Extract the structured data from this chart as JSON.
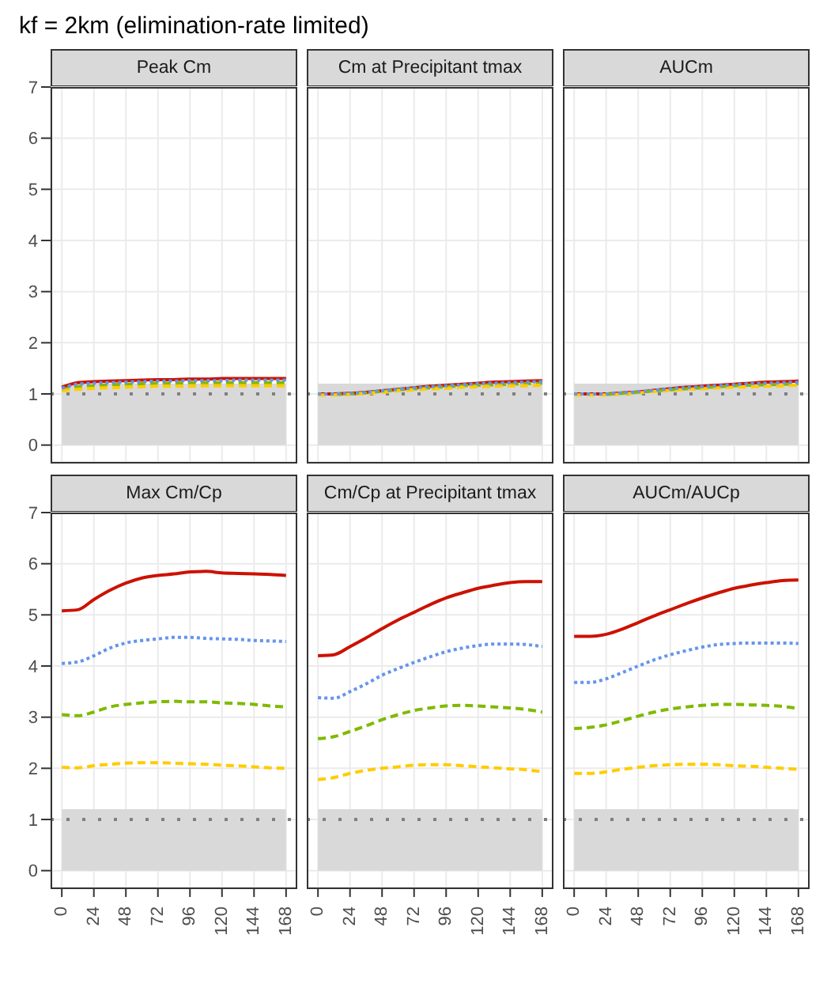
{
  "chart_data": [
    {
      "type": "line",
      "title": "Peak Cm",
      "annotations": [
        "kf = 2km (elimination-rate limited)"
      ],
      "x": [
        0,
        12,
        24,
        36,
        48,
        60,
        72,
        84,
        96,
        108,
        120,
        132,
        144,
        156,
        168
      ],
      "xlim": [
        -8.4,
        176.4
      ],
      "xticks": [
        0,
        24,
        48,
        72,
        96,
        120,
        144,
        168
      ],
      "ylim": [
        -0.33,
        7
      ],
      "yticks": [
        0,
        1,
        2,
        3,
        4,
        5,
        6,
        7
      ],
      "grid": true,
      "tick_labels": "y",
      "bands": [
        {
          "axis": "y",
          "from": 0,
          "to": 1.2,
          "color": "#d9d9d9"
        }
      ],
      "ref_lines": [
        {
          "axis": "y",
          "value": 1,
          "color": "#7f7f7f",
          "line_style": "dotted"
        }
      ],
      "series": [
        {
          "color": "#cc1100",
          "line_style": "solid",
          "values": [
            1.13,
            1.22,
            1.24,
            1.25,
            1.26,
            1.27,
            1.28,
            1.28,
            1.29,
            1.29,
            1.3,
            1.3,
            1.3,
            1.3,
            1.3
          ]
        },
        {
          "color": "#6495ed",
          "line_style": "dotted",
          "values": [
            1.11,
            1.19,
            1.21,
            1.22,
            1.23,
            1.24,
            1.25,
            1.25,
            1.26,
            1.26,
            1.26,
            1.27,
            1.27,
            1.27,
            1.27
          ]
        },
        {
          "color": "#7fba00",
          "line_style": "dashed",
          "values": [
            1.09,
            1.14,
            1.16,
            1.18,
            1.19,
            1.2,
            1.21,
            1.21,
            1.22,
            1.22,
            1.22,
            1.22,
            1.22,
            1.22,
            1.22
          ]
        },
        {
          "color": "#ffcc00",
          "line_style": "dashed",
          "values": [
            1.06,
            1.09,
            1.11,
            1.12,
            1.13,
            1.14,
            1.15,
            1.15,
            1.15,
            1.16,
            1.16,
            1.16,
            1.16,
            1.16,
            1.16
          ]
        }
      ]
    },
    {
      "type": "line",
      "title": "Cm at Precipitant tmax",
      "x": [
        0,
        12,
        24,
        36,
        48,
        60,
        72,
        84,
        96,
        108,
        120,
        132,
        144,
        156,
        168
      ],
      "xlim": [
        -8.4,
        176.4
      ],
      "xticks": [
        0,
        24,
        48,
        72,
        96,
        120,
        144,
        168
      ],
      "ylim": [
        -0.33,
        7
      ],
      "yticks": [
        0,
        1,
        2,
        3,
        4,
        5,
        6,
        7
      ],
      "grid": true,
      "tick_labels": false,
      "bands": [
        {
          "axis": "y",
          "from": 0,
          "to": 1.2,
          "color": "#d9d9d9"
        }
      ],
      "ref_lines": [
        {
          "axis": "y",
          "value": 1,
          "color": "#7f7f7f",
          "line_style": "dotted"
        }
      ],
      "series": [
        {
          "color": "#cc1100",
          "line_style": "solid",
          "values": [
            1.0,
            1.0,
            1.01,
            1.03,
            1.06,
            1.09,
            1.12,
            1.15,
            1.17,
            1.19,
            1.21,
            1.23,
            1.24,
            1.25,
            1.26
          ]
        },
        {
          "color": "#6495ed",
          "line_style": "dotted",
          "values": [
            1.0,
            1.0,
            1.01,
            1.03,
            1.06,
            1.09,
            1.12,
            1.14,
            1.16,
            1.18,
            1.2,
            1.21,
            1.22,
            1.23,
            1.24
          ]
        },
        {
          "color": "#7fba00",
          "line_style": "dashed",
          "values": [
            null,
            0.99,
            1.0,
            1.02,
            1.05,
            1.08,
            1.1,
            1.12,
            1.14,
            1.16,
            1.17,
            1.18,
            1.19,
            1.2,
            1.21
          ]
        },
        {
          "color": "#ffcc00",
          "line_style": "dashed",
          "values": [
            0.98,
            0.98,
            0.99,
            1.01,
            1.03,
            1.06,
            1.08,
            1.1,
            1.11,
            1.13,
            1.14,
            1.15,
            1.16,
            1.16,
            1.17
          ]
        }
      ]
    },
    {
      "type": "line",
      "title": "AUCm",
      "x": [
        0,
        12,
        24,
        36,
        48,
        60,
        72,
        84,
        96,
        108,
        120,
        132,
        144,
        156,
        168
      ],
      "xlim": [
        -8.4,
        176.4
      ],
      "xticks": [
        0,
        24,
        48,
        72,
        96,
        120,
        144,
        168
      ],
      "ylim": [
        -0.33,
        7
      ],
      "yticks": [
        0,
        1,
        2,
        3,
        4,
        5,
        6,
        7
      ],
      "grid": true,
      "tick_labels": false,
      "bands": [
        {
          "axis": "y",
          "from": 0,
          "to": 1.2,
          "color": "#d9d9d9"
        }
      ],
      "ref_lines": [
        {
          "axis": "y",
          "value": 1,
          "color": "#7f7f7f",
          "line_style": "dotted"
        }
      ],
      "series": [
        {
          "color": "#cc1100",
          "line_style": "solid",
          "values": [
            1.0,
            1.0,
            1.0,
            1.02,
            1.04,
            1.07,
            1.1,
            1.13,
            1.15,
            1.17,
            1.19,
            1.21,
            1.23,
            1.24,
            1.25
          ]
        },
        {
          "color": "#6495ed",
          "line_style": "dotted",
          "values": [
            1.0,
            1.0,
            1.0,
            1.02,
            1.04,
            1.07,
            1.1,
            1.12,
            1.14,
            1.16,
            1.18,
            1.2,
            1.21,
            1.22,
            1.23
          ]
        },
        {
          "color": "#7fba00",
          "line_style": "dashed",
          "values": [
            null,
            null,
            0.99,
            1.01,
            1.03,
            1.06,
            1.08,
            1.1,
            1.12,
            1.14,
            1.16,
            1.17,
            1.18,
            1.19,
            1.2
          ]
        },
        {
          "color": "#ffcc00",
          "line_style": "dashed",
          "values": [
            0.98,
            0.98,
            0.98,
            1.0,
            1.02,
            1.05,
            1.07,
            1.09,
            1.1,
            1.12,
            1.13,
            1.14,
            1.15,
            1.16,
            1.17
          ]
        }
      ]
    },
    {
      "type": "line",
      "title": "Max Cm/Cp",
      "x": [
        0,
        12,
        24,
        36,
        48,
        60,
        72,
        84,
        96,
        108,
        120,
        132,
        144,
        156,
        168
      ],
      "xlim": [
        -8.4,
        176.4
      ],
      "xticks": [
        0,
        24,
        48,
        72,
        96,
        120,
        144,
        168
      ],
      "ylim": [
        -0.33,
        7
      ],
      "yticks": [
        0,
        1,
        2,
        3,
        4,
        5,
        6,
        7
      ],
      "grid": true,
      "bands": [
        {
          "axis": "y",
          "from": 0,
          "to": 1.2,
          "color": "#d9d9d9"
        }
      ],
      "ref_lines": [
        {
          "axis": "y",
          "value": 1,
          "color": "#7f7f7f",
          "line_style": "dotted"
        }
      ],
      "series": [
        {
          "color": "#cc1100",
          "line_style": "solid",
          "values": [
            5.08,
            5.1,
            5.3,
            5.48,
            5.62,
            5.72,
            5.77,
            5.8,
            5.84,
            5.85,
            5.82,
            5.81,
            5.8,
            5.79,
            5.77
          ]
        },
        {
          "color": "#6495ed",
          "line_style": "dotted",
          "values": [
            4.05,
            4.08,
            4.2,
            4.35,
            4.45,
            4.5,
            4.53,
            4.56,
            4.56,
            4.54,
            4.53,
            4.52,
            4.5,
            4.49,
            4.48
          ]
        },
        {
          "color": "#7fba00",
          "line_style": "dashed",
          "values": [
            3.05,
            3.03,
            3.1,
            3.2,
            3.25,
            3.28,
            3.3,
            3.31,
            3.3,
            3.3,
            3.28,
            3.27,
            3.25,
            3.22,
            3.2
          ]
        },
        {
          "color": "#ffcc00",
          "line_style": "dashed",
          "values": [
            2.02,
            2.01,
            2.05,
            2.08,
            2.1,
            2.11,
            2.11,
            2.1,
            2.09,
            2.08,
            2.06,
            2.05,
            2.03,
            2.01,
            2.0
          ]
        }
      ]
    },
    {
      "type": "line",
      "title": "Cm/Cp at Precipitant tmax",
      "x": [
        0,
        12,
        24,
        36,
        48,
        60,
        72,
        84,
        96,
        108,
        120,
        132,
        144,
        156,
        168
      ],
      "xlim": [
        -8.4,
        176.4
      ],
      "xticks": [
        0,
        24,
        48,
        72,
        96,
        120,
        144,
        168
      ],
      "ylim": [
        -0.33,
        7
      ],
      "yticks": [
        0,
        1,
        2,
        3,
        4,
        5,
        6,
        7
      ],
      "grid": true,
      "tick_labels": "x",
      "bands": [
        {
          "axis": "y",
          "from": 0,
          "to": 1.2,
          "color": "#d9d9d9"
        }
      ],
      "ref_lines": [
        {
          "axis": "y",
          "value": 1,
          "color": "#7f7f7f",
          "line_style": "dotted"
        }
      ],
      "series": [
        {
          "color": "#cc1100",
          "line_style": "solid",
          "values": [
            4.2,
            4.22,
            4.38,
            4.55,
            4.73,
            4.9,
            5.05,
            5.2,
            5.33,
            5.43,
            5.52,
            5.58,
            5.63,
            5.65,
            5.65
          ]
        },
        {
          "color": "#6495ed",
          "line_style": "dotted",
          "values": [
            3.38,
            3.37,
            3.5,
            3.65,
            3.82,
            3.95,
            4.07,
            4.18,
            4.28,
            4.35,
            4.4,
            4.43,
            4.43,
            4.42,
            4.38
          ]
        },
        {
          "color": "#7fba00",
          "line_style": "dashed",
          "values": [
            2.58,
            2.62,
            2.72,
            2.83,
            2.95,
            3.05,
            3.13,
            3.18,
            3.22,
            3.23,
            3.22,
            3.2,
            3.18,
            3.15,
            3.1
          ]
        },
        {
          "color": "#ffcc00",
          "line_style": "dashed",
          "values": [
            1.78,
            1.82,
            1.9,
            1.96,
            2.0,
            2.03,
            2.06,
            2.07,
            2.07,
            2.05,
            2.03,
            2.01,
            1.99,
            1.97,
            1.93
          ]
        }
      ]
    },
    {
      "type": "line",
      "title": "AUCm/AUCp",
      "x": [
        0,
        12,
        24,
        36,
        48,
        60,
        72,
        84,
        96,
        108,
        120,
        132,
        144,
        156,
        168
      ],
      "xlim": [
        -8.4,
        176.4
      ],
      "xticks": [
        0,
        24,
        48,
        72,
        96,
        120,
        144,
        168
      ],
      "ylim": [
        -0.33,
        7
      ],
      "yticks": [
        0,
        1,
        2,
        3,
        4,
        5,
        6,
        7
      ],
      "grid": true,
      "tick_labels": "x",
      "bands": [
        {
          "axis": "y",
          "from": 0,
          "to": 1.2,
          "color": "#d9d9d9"
        }
      ],
      "ref_lines": [
        {
          "axis": "y",
          "value": 1,
          "color": "#7f7f7f",
          "line_style": "dotted"
        }
      ],
      "series": [
        {
          "color": "#cc1100",
          "line_style": "solid",
          "values": [
            4.58,
            4.58,
            4.62,
            4.72,
            4.85,
            4.98,
            5.1,
            5.22,
            5.33,
            5.43,
            5.52,
            5.58,
            5.63,
            5.67,
            5.68
          ]
        },
        {
          "color": "#6495ed",
          "line_style": "dotted",
          "values": [
            3.68,
            3.68,
            3.75,
            3.87,
            4.0,
            4.12,
            4.22,
            4.3,
            4.37,
            4.42,
            4.44,
            4.45,
            4.45,
            4.45,
            4.44
          ]
        },
        {
          "color": "#7fba00",
          "line_style": "dashed",
          "values": [
            2.78,
            2.8,
            2.85,
            2.93,
            3.02,
            3.1,
            3.16,
            3.2,
            3.23,
            3.25,
            3.25,
            3.24,
            3.23,
            3.21,
            3.17
          ]
        },
        {
          "color": "#ffcc00",
          "line_style": "dashed",
          "values": [
            1.9,
            1.9,
            1.93,
            1.98,
            2.02,
            2.05,
            2.07,
            2.08,
            2.08,
            2.07,
            2.05,
            2.04,
            2.02,
            2.0,
            1.98
          ]
        }
      ]
    }
  ]
}
